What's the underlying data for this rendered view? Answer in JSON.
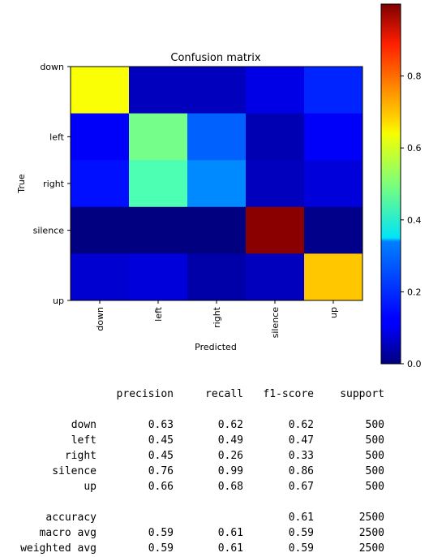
{
  "chart_data": {
    "type": "heatmap",
    "title": "Confusion matrix",
    "xlabel": "Predicted",
    "ylabel": "True",
    "x_categories": [
      "down",
      "left",
      "right",
      "silence",
      "up"
    ],
    "y_categories": [
      "down",
      "left",
      "right",
      "silence",
      "up"
    ],
    "values": [
      [
        0.62,
        0.06,
        0.06,
        0.1,
        0.16
      ],
      [
        0.12,
        0.49,
        0.22,
        0.05,
        0.12
      ],
      [
        0.14,
        0.45,
        0.26,
        0.06,
        0.09
      ],
      [
        0.0,
        0.0,
        0.0,
        0.99,
        0.01
      ],
      [
        0.08,
        0.09,
        0.04,
        0.06,
        0.68
      ]
    ],
    "colormap": "jet",
    "colorbar": {
      "range": [
        0.0,
        1.0
      ],
      "ticks": [
        0.0,
        0.2,
        0.4,
        0.6,
        0.8
      ],
      "tick_labels": [
        "0.0",
        "0.2",
        "0.4",
        "0.6",
        "0.8"
      ]
    }
  },
  "report": {
    "headers": [
      "precision",
      "recall",
      "f1-score",
      "support"
    ],
    "rows": [
      {
        "label": "down",
        "precision": "0.63",
        "recall": "0.62",
        "f1": "0.62",
        "support": "500"
      },
      {
        "label": "left",
        "precision": "0.45",
        "recall": "0.49",
        "f1": "0.47",
        "support": "500"
      },
      {
        "label": "right",
        "precision": "0.45",
        "recall": "0.26",
        "f1": "0.33",
        "support": "500"
      },
      {
        "label": "silence",
        "precision": "0.76",
        "recall": "0.99",
        "f1": "0.86",
        "support": "500"
      },
      {
        "label": "up",
        "precision": "0.66",
        "recall": "0.68",
        "f1": "0.67",
        "support": "500"
      }
    ],
    "summary": [
      {
        "label": "accuracy",
        "precision": "",
        "recall": "",
        "f1": "0.61",
        "support": "2500"
      },
      {
        "label": "macro avg",
        "precision": "0.59",
        "recall": "0.61",
        "f1": "0.59",
        "support": "2500"
      },
      {
        "label": "weighted avg",
        "precision": "0.59",
        "recall": "0.61",
        "f1": "0.59",
        "support": "2500"
      }
    ]
  }
}
